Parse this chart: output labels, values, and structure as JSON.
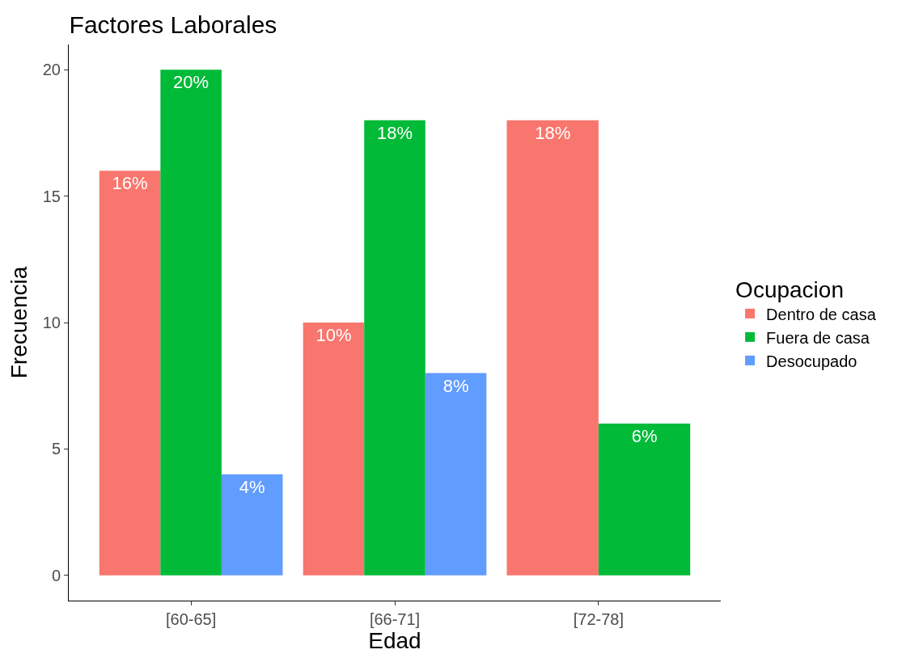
{
  "chart_data": {
    "type": "bar",
    "title": "Factores Laborales",
    "xlabel": "Edad",
    "ylabel": "Frecuencia",
    "legend_title": "Ocupacion",
    "categories": [
      "[60-65]",
      "[66-71]",
      "[72-78]"
    ],
    "series": [
      {
        "name": "Dentro de casa",
        "color": "#f8766d",
        "values": [
          16,
          10,
          18
        ],
        "value_labels": [
          "16%",
          "10%",
          "18%"
        ]
      },
      {
        "name": "Fuera de casa",
        "color": "#00ba38",
        "values": [
          20,
          18,
          6
        ],
        "value_labels": [
          "20%",
          "18%",
          "6%"
        ]
      },
      {
        "name": "Desocupado",
        "color": "#619cff",
        "values": [
          4,
          8,
          null
        ],
        "value_labels": [
          "4%",
          "8%",
          null
        ]
      }
    ],
    "ylim": [
      -1,
      21
    ],
    "yticks": [
      0,
      5,
      10,
      15,
      20
    ],
    "legend": "right"
  }
}
